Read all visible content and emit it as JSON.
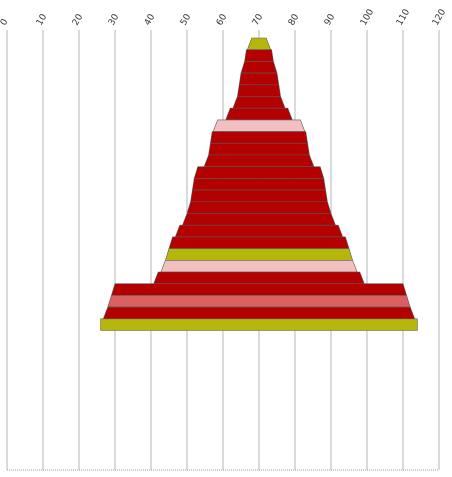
{
  "chart_data": {
    "type": "bar",
    "orientation": "horizontal",
    "layout": "centered-funnel",
    "title": "",
    "xlabel": "",
    "ylabel": "",
    "xlim": [
      0,
      120
    ],
    "x_ticks": [
      0,
      10,
      20,
      30,
      40,
      50,
      60,
      70,
      80,
      90,
      100,
      110,
      120
    ],
    "grid": "vertical",
    "legend": "none",
    "center_value": 70,
    "bars": [
      {
        "width": 4,
        "color": "#b5b80a"
      },
      {
        "width": 7,
        "color": "#b30000"
      },
      {
        "width": 8,
        "color": "#b30000"
      },
      {
        "width": 10,
        "color": "#b30000"
      },
      {
        "width": 11,
        "color": "#b30000"
      },
      {
        "width": 12,
        "color": "#b30000"
      },
      {
        "width": 16,
        "color": "#b30000"
      },
      {
        "width": 23,
        "color": "#f2c0c0"
      },
      {
        "width": 26,
        "color": "#b30000"
      },
      {
        "width": 27,
        "color": "#b30000"
      },
      {
        "width": 28,
        "color": "#b30000"
      },
      {
        "width": 34,
        "color": "#b30000"
      },
      {
        "width": 36,
        "color": "#b30000"
      },
      {
        "width": 37,
        "color": "#b30000"
      },
      {
        "width": 38,
        "color": "#b30000"
      },
      {
        "width": 40,
        "color": "#b30000"
      },
      {
        "width": 44,
        "color": "#b30000"
      },
      {
        "width": 48,
        "color": "#b30000"
      },
      {
        "width": 50,
        "color": "#b5b80a"
      },
      {
        "width": 52,
        "color": "#f2c0c0"
      },
      {
        "width": 56,
        "color": "#b30000"
      },
      {
        "width": 80,
        "color": "#b30000"
      },
      {
        "width": 82,
        "color": "#d86060"
      },
      {
        "width": 84,
        "color": "#b30000"
      },
      {
        "width": 88,
        "color": "#b5b80a"
      }
    ]
  }
}
